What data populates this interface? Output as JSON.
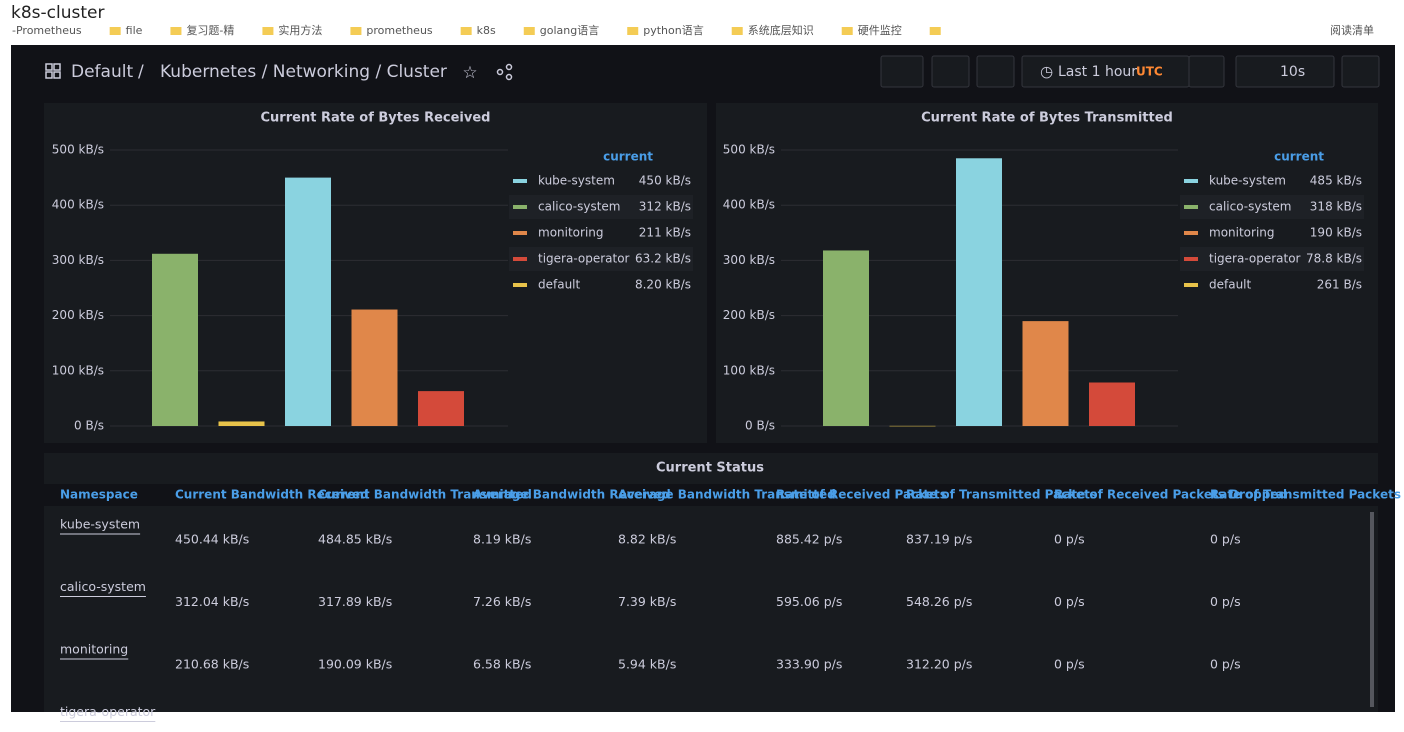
{
  "window_title": "k8s-cluster",
  "bookmarks": [
    "-Prometheus",
    "file",
    "复习题-精",
    "实用方法",
    "prometheus",
    "k8s",
    "golang语言",
    "python语言",
    "系统底层知识",
    "硬件监控",
    "阅读清单"
  ],
  "breadcrumb": {
    "folder": "Default",
    "dashboard": "Kubernetes / Networking / Cluster"
  },
  "time_picker": {
    "range": "Last 1 hour",
    "timezone": "UTC"
  },
  "refresh": "10s",
  "chart_data": [
    {
      "type": "bar",
      "title": "Current Rate of Bytes Received",
      "categories": [
        null,
        null,
        null,
        null,
        null
      ],
      "values": [
        312,
        8.2,
        450,
        211,
        63.2
      ],
      "colors": [
        "#8ab26b",
        "#e8c34a",
        "#8ad3e0",
        "#e0874a",
        "#d44a3a"
      ],
      "ylim": [
        0,
        500
      ],
      "yticks": [
        {
          "value": 0,
          "label": "0 B/s"
        },
        {
          "value": 100,
          "label": "100 kB/s"
        },
        {
          "value": 200,
          "label": "200 kB/s"
        },
        {
          "value": 300,
          "label": "300 kB/s"
        },
        {
          "value": 400,
          "label": "400 kB/s"
        },
        {
          "value": 500,
          "label": "500 kB/s"
        }
      ],
      "grid": true,
      "legend": {
        "title": "current",
        "entries": [
          {
            "name": "kube-system",
            "color": "#8ad3e0",
            "value": "450 kB/s"
          },
          {
            "name": "calico-system",
            "color": "#8ab26b",
            "value": "312 kB/s"
          },
          {
            "name": "monitoring",
            "color": "#e0874a",
            "value": "211 kB/s"
          },
          {
            "name": "tigera-operator",
            "color": "#d44a3a",
            "value": "63.2 kB/s"
          },
          {
            "name": "default",
            "color": "#e8c34a",
            "value": "8.20 kB/s"
          }
        ]
      }
    },
    {
      "type": "bar",
      "title": "Current Rate of Bytes Transmitted",
      "categories": [
        null,
        null,
        null,
        null,
        null
      ],
      "values": [
        318,
        0.261,
        485,
        190,
        78.8
      ],
      "colors": [
        "#8ab26b",
        "#e8c34a",
        "#8ad3e0",
        "#e0874a",
        "#d44a3a"
      ],
      "ylim": [
        0,
        500
      ],
      "yticks": [
        {
          "value": 0,
          "label": "0 B/s"
        },
        {
          "value": 100,
          "label": "100 kB/s"
        },
        {
          "value": 200,
          "label": "200 kB/s"
        },
        {
          "value": 300,
          "label": "300 kB/s"
        },
        {
          "value": 400,
          "label": "400 kB/s"
        },
        {
          "value": 500,
          "label": "500 kB/s"
        }
      ],
      "grid": true,
      "legend": {
        "title": "current",
        "entries": [
          {
            "name": "kube-system",
            "color": "#8ad3e0",
            "value": "485 kB/s"
          },
          {
            "name": "calico-system",
            "color": "#8ab26b",
            "value": "318 kB/s"
          },
          {
            "name": "monitoring",
            "color": "#e0874a",
            "value": "190 kB/s"
          },
          {
            "name": "tigera-operator",
            "color": "#d44a3a",
            "value": "78.8 kB/s"
          },
          {
            "name": "default",
            "color": "#e8c34a",
            "value": "261 B/s"
          }
        ]
      }
    }
  ],
  "table": {
    "title": "Current Status",
    "columns": [
      "Namespace",
      "Current Bandwidth Received",
      "Current Bandwidth Transmitted",
      "Average Bandwidth Received",
      "Average Bandwidth Transmitted",
      "Rate of Received Packets",
      "Rate of Transmitted Packets",
      "Rate of Received Packets Dropped",
      "Rate of Transmitted Packets Dropped"
    ],
    "rows": [
      [
        "kube-system",
        "450.44 kB/s",
        "484.85 kB/s",
        "8.19 kB/s",
        "8.82 kB/s",
        "885.42 p/s",
        "837.19 p/s",
        "0 p/s",
        "0 p/s"
      ],
      [
        "calico-system",
        "312.04 kB/s",
        "317.89 kB/s",
        "7.26 kB/s",
        "7.39 kB/s",
        "595.06 p/s",
        "548.26 p/s",
        "0 p/s",
        "0 p/s"
      ],
      [
        "monitoring",
        "210.68 kB/s",
        "190.09 kB/s",
        "6.58 kB/s",
        "5.94 kB/s",
        "333.90 p/s",
        "312.20 p/s",
        "0 p/s",
        "0 p/s"
      ],
      [
        "tigera-operator"
      ]
    ]
  }
}
